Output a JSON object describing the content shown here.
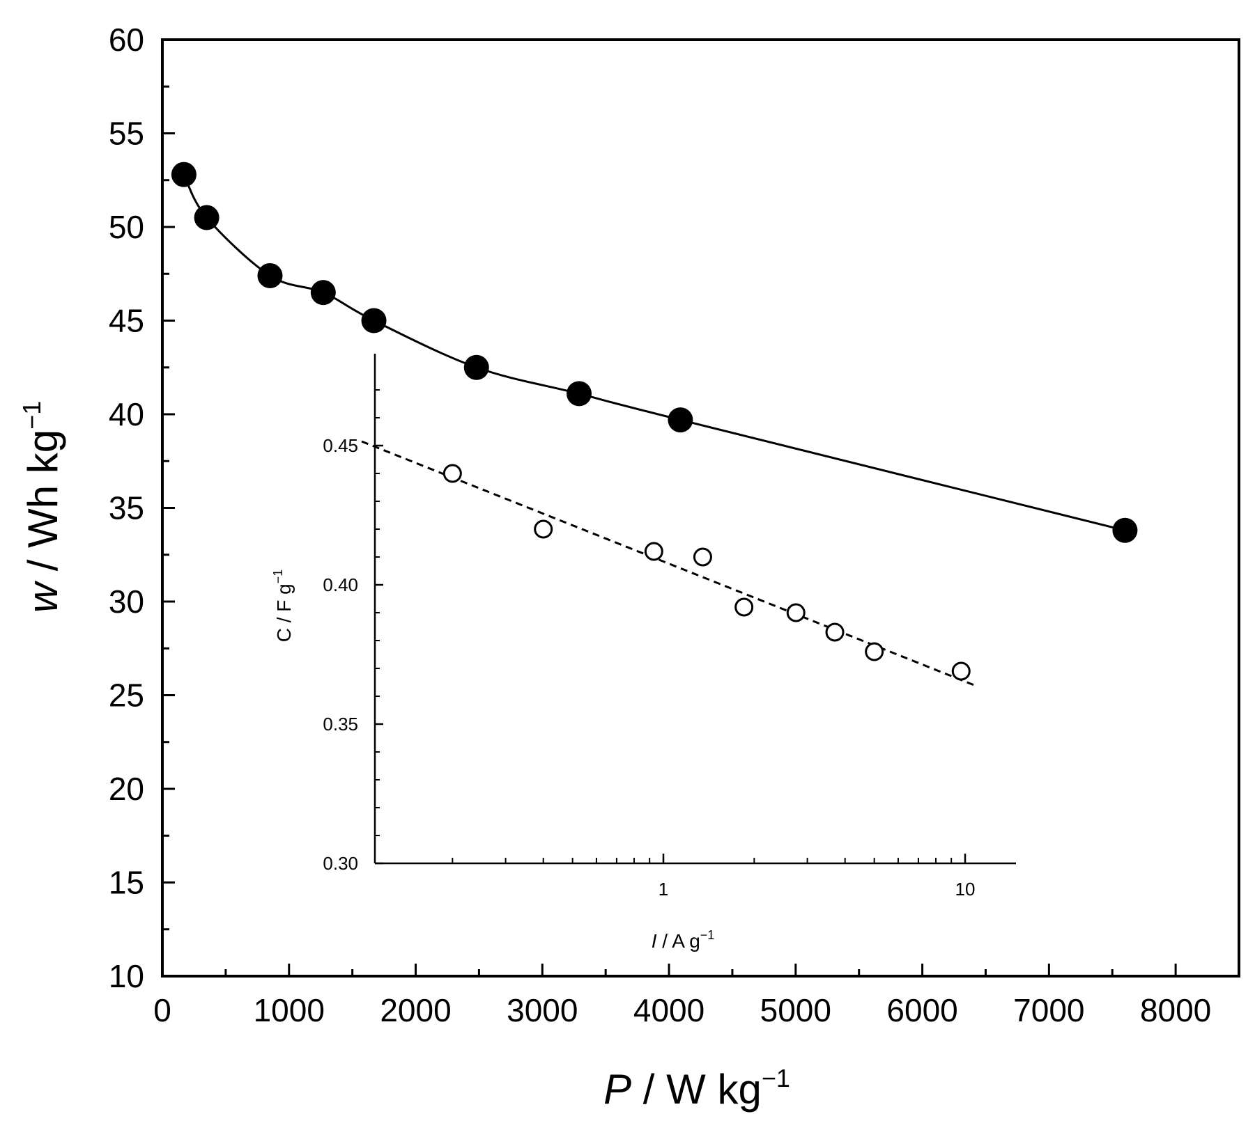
{
  "chart_data": [
    {
      "type": "line",
      "marker": "filled-circle",
      "xlabel": {
        "italic": "P",
        "text": " / W kg",
        "sup": "−1"
      },
      "ylabel": {
        "italic": "w",
        "text": " / Wh kg",
        "sup": "−1"
      },
      "xlim": [
        0,
        8500
      ],
      "ylim": [
        10,
        60
      ],
      "xticks": [
        "0",
        "1000",
        "2000",
        "3000",
        "4000",
        "5000",
        "6000",
        "7000",
        "8000"
      ],
      "xtick_values": [
        0,
        1000,
        2000,
        3000,
        4000,
        5000,
        6000,
        7000,
        8000
      ],
      "yticks": [
        "10",
        "15",
        "20",
        "25",
        "30",
        "35",
        "40",
        "45",
        "50",
        "55",
        "60"
      ],
      "ytick_values": [
        10,
        15,
        20,
        25,
        30,
        35,
        40,
        45,
        50,
        55,
        60
      ],
      "series": [
        {
          "x": [
            170,
            350,
            850,
            1270,
            1670,
            2480,
            3290,
            4090,
            7600
          ],
          "y": [
            52.8,
            50.5,
            47.4,
            46.5,
            45.0,
            42.5,
            41.1,
            39.7,
            33.8
          ],
          "color": "#000000"
        }
      ],
      "grid": false
    },
    {
      "type": "scatter",
      "marker": "open-circle",
      "xscale": "log",
      "xlabel": {
        "italic": "I",
        "text": " / A g",
        "sup": "−1"
      },
      "ylabel": {
        "italic": "",
        "text": "C / F g",
        "sup": "−1"
      },
      "xlim": [
        0.1,
        15
      ],
      "ylim": [
        0.3,
        0.48
      ],
      "xticks": [
        "1",
        "10"
      ],
      "xtick_values": [
        1,
        10
      ],
      "yticks": [
        "0.30",
        "0.35",
        "0.40",
        "0.45"
      ],
      "ytick_values": [
        0.3,
        0.35,
        0.4,
        0.45
      ],
      "series": [
        {
          "x": [
            0.2,
            0.4,
            0.93,
            1.35,
            1.85,
            2.75,
            3.7,
            5.0,
            9.7
          ],
          "y": [
            0.44,
            0.42,
            0.412,
            0.41,
            0.392,
            0.39,
            0.383,
            0.376,
            0.369
          ],
          "color": "#000000"
        }
      ],
      "fit_line": {
        "style": "dashed",
        "x": [
          0.1,
          11.0
        ],
        "y": [
          0.4515,
          0.3635
        ]
      },
      "grid": false
    }
  ]
}
